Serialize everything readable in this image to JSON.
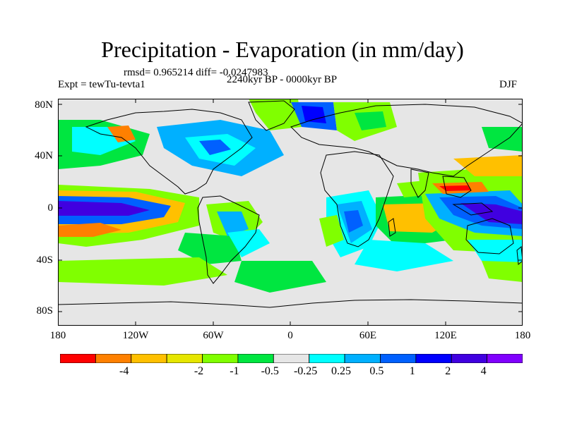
{
  "title": "Precipitation - Evaporation (in mm/day)",
  "stats": "rmsd= 0.965214 diff= -0.0247983",
  "experiment": "Expt = tewTu-tevta1",
  "period": "2240kyr BP - 0000kyr BP",
  "season": "DJF",
  "lat_labels": [
    "80N",
    "40N",
    "0",
    "40S",
    "80S"
  ],
  "lon_labels": [
    "180",
    "120W",
    "60W",
    "0",
    "60E",
    "120E",
    "180"
  ],
  "colorbar": {
    "labels": [
      "-4",
      "-2",
      "-1",
      "-0.5",
      "-0.25",
      "0.25",
      "0.5",
      "1",
      "2",
      "4"
    ],
    "colors": [
      "#ff0000",
      "#ff8000",
      "#ffc000",
      "#e6e600",
      "#80ff00",
      "#00e640",
      "#e6e6e6",
      "#00ffff",
      "#00b0ff",
      "#0060ff",
      "#0000ff",
      "#4000e0",
      "#8000ff"
    ]
  },
  "map": {
    "background": "#e6e6e6",
    "coastline_color": "#000000"
  }
}
